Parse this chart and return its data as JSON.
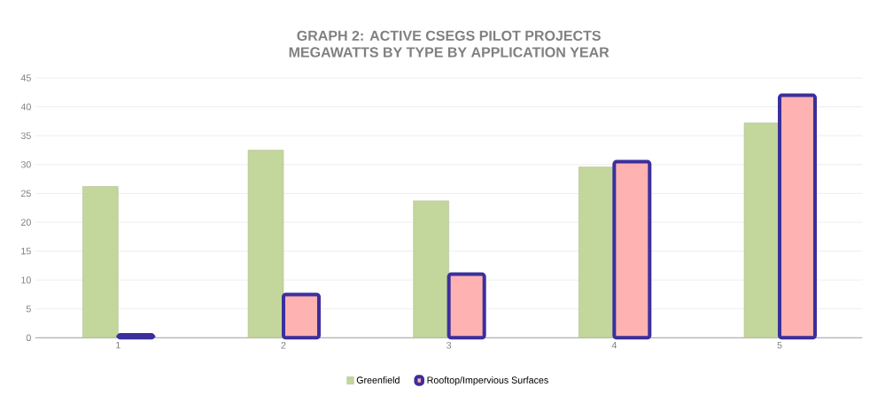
{
  "chart_data": {
    "type": "bar",
    "title": "GRAPH 2: ACTIVE CSEGS PILOT PROJECTS",
    "subtitle": "MEGAWATTS BY TYPE BY APPLICATION YEAR",
    "categories": [
      "1",
      "2",
      "3",
      "4",
      "5"
    ],
    "series": [
      {
        "name": "Greenfield",
        "color": "#c3d69b",
        "values": [
          26.2,
          32.5,
          23.7,
          29.6,
          37.2
        ]
      },
      {
        "name": "Rooftop/Impervious Surfaces",
        "color": "#3b2f9b",
        "values": [
          0.5,
          7.5,
          11,
          30.5,
          42
        ]
      }
    ],
    "ylim": [
      0,
      45
    ],
    "yticks": [
      0,
      5,
      10,
      15,
      20,
      25,
      30,
      35,
      40,
      45
    ],
    "grid": "y",
    "legend": "bottom"
  }
}
